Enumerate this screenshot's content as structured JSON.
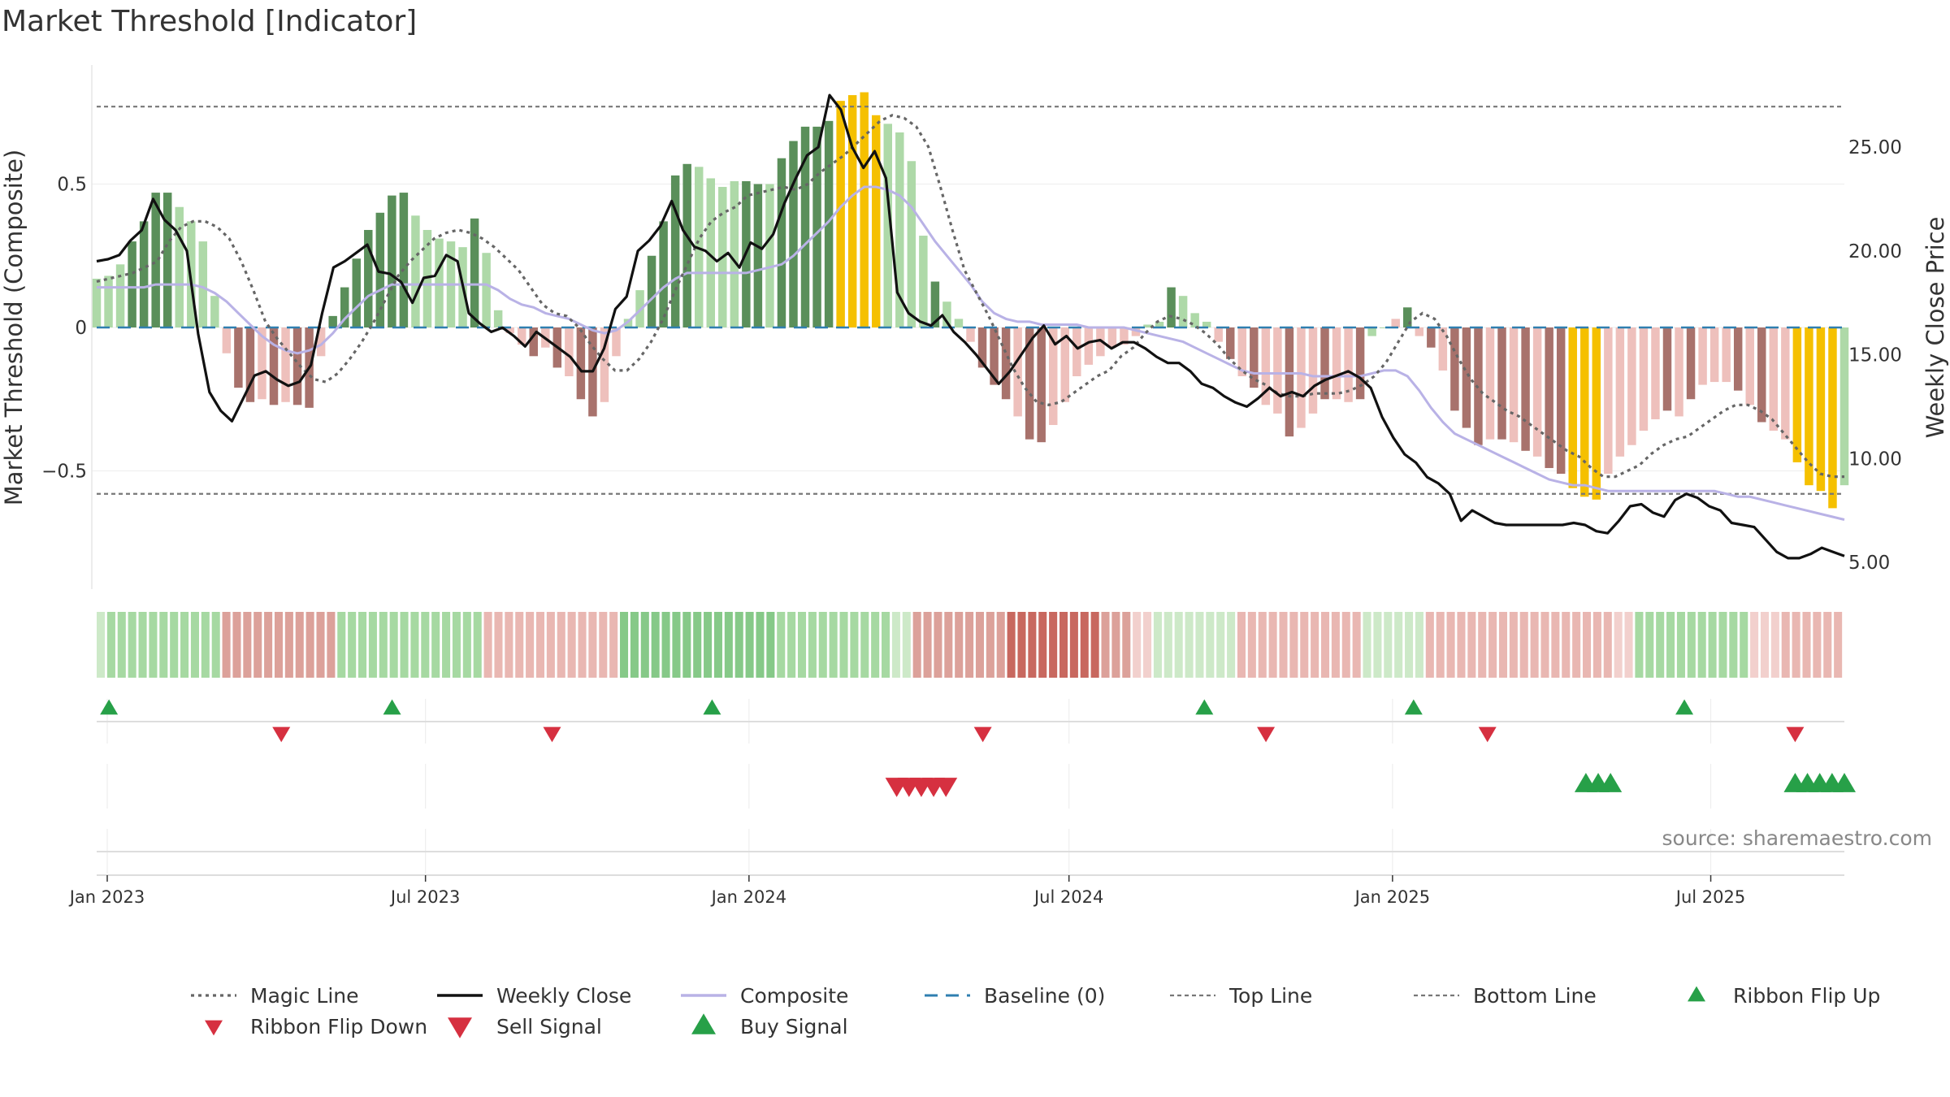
{
  "title": "Market Threshold [Indicator]",
  "source": "source: sharemaestro.com",
  "colors": {
    "bar_dark_green": "#5a8f5a",
    "bar_light_green": "#aed9a8",
    "bar_dark_red": "#a8726c",
    "bar_light_red": "#eec0bc",
    "bar_gold": "#f5c000",
    "magic": "#666666",
    "close": "#111111",
    "composite": "#b9b2e6",
    "baseline": "#2f7fb0",
    "threshold": "#777777",
    "signal_up": "#27a048",
    "signal_down": "#d63040"
  },
  "chart_data": {
    "type": "bar+line",
    "title": "Market Threshold [Indicator]",
    "left_axis": {
      "label": "Market Threshold (Composite)",
      "ticks": [
        "0.5",
        "0",
        "−0.5"
      ],
      "tick_values": [
        0.5,
        0,
        -0.5
      ],
      "range": [
        -0.9,
        0.92
      ]
    },
    "right_axis": {
      "label": "Weekly Close Price",
      "ticks": [
        "25.00",
        "20.00",
        "15.00",
        "10.00",
        "5.00"
      ],
      "tick_values": [
        25,
        20,
        15,
        10,
        5
      ],
      "range": [
        4,
        29.5
      ]
    },
    "x_axis": {
      "type": "date",
      "start": "2022-12-26",
      "end": "2025-09-15",
      "ticks": [
        {
          "label": "Jan 2023",
          "date": "2023-01-01"
        },
        {
          "label": "Jul 2023",
          "date": "2023-07-01"
        },
        {
          "label": "Jan 2024",
          "date": "2024-01-01"
        },
        {
          "label": "Jul 2024",
          "date": "2024-07-01"
        },
        {
          "label": "Jan 2025",
          "date": "2025-01-01"
        },
        {
          "label": "Jul 2025",
          "date": "2025-07-01"
        }
      ]
    },
    "top_line": 0.77,
    "bottom_line": -0.58,
    "baseline": 0,
    "composite_bars": [
      0.17,
      0.18,
      0.22,
      0.3,
      0.37,
      0.47,
      0.47,
      0.42,
      0.37,
      0.3,
      0.11,
      -0.09,
      -0.21,
      -0.26,
      -0.25,
      -0.27,
      -0.26,
      -0.27,
      -0.28,
      -0.1,
      0.04,
      0.14,
      0.24,
      0.34,
      0.4,
      0.46,
      0.47,
      0.39,
      0.34,
      0.31,
      0.3,
      0.28,
      0.38,
      0.26,
      0.06,
      -0.02,
      -0.06,
      -0.1,
      -0.07,
      -0.14,
      -0.17,
      -0.25,
      -0.31,
      -0.26,
      -0.1,
      0.03,
      0.13,
      0.25,
      0.37,
      0.53,
      0.57,
      0.56,
      0.52,
      0.49,
      0.51,
      0.51,
      0.5,
      0.5,
      0.59,
      0.65,
      0.7,
      0.7,
      0.72,
      0.79,
      0.81,
      0.82,
      0.74,
      0.71,
      0.68,
      0.58,
      0.32,
      0.16,
      0.09,
      0.03,
      -0.05,
      -0.14,
      -0.2,
      -0.25,
      -0.31,
      -0.39,
      -0.4,
      -0.34,
      -0.26,
      -0.17,
      -0.13,
      -0.1,
      -0.07,
      -0.06,
      -0.03,
      0.01,
      0.02,
      0.14,
      0.11,
      0.05,
      0.02,
      -0.05,
      -0.11,
      -0.17,
      -0.21,
      -0.27,
      -0.3,
      -0.38,
      -0.35,
      -0.3,
      -0.25,
      -0.25,
      -0.26,
      -0.25,
      -0.03,
      0.0,
      0.03,
      0.07,
      -0.03,
      -0.07,
      -0.15,
      -0.29,
      -0.35,
      -0.41,
      -0.39,
      -0.39,
      -0.4,
      -0.43,
      -0.45,
      -0.49,
      -0.51,
      -0.56,
      -0.59,
      -0.6,
      -0.51,
      -0.45,
      -0.41,
      -0.36,
      -0.32,
      -0.29,
      -0.31,
      -0.25,
      -0.2,
      -0.19,
      -0.19,
      -0.22,
      -0.27,
      -0.33,
      -0.36,
      -0.39,
      -0.47,
      -0.55,
      -0.57,
      -0.63,
      -0.55
    ],
    "bar_colors": [
      "lg",
      "lg",
      "lg",
      "dg",
      "dg",
      "dg",
      "dg",
      "lg",
      "lg",
      "lg",
      "lg",
      "lr",
      "dr",
      "dr",
      "lr",
      "dr",
      "lr",
      "dr",
      "dr",
      "lr",
      "dg",
      "dg",
      "dg",
      "dg",
      "dg",
      "dg",
      "dg",
      "lg",
      "lg",
      "lg",
      "lg",
      "lg",
      "dg",
      "lg",
      "lg",
      "lr",
      "lr",
      "dr",
      "lr",
      "dr",
      "lr",
      "dr",
      "dr",
      "lr",
      "lr",
      "lg",
      "lg",
      "dg",
      "dg",
      "dg",
      "dg",
      "lg",
      "lg",
      "lg",
      "lg",
      "dg",
      "dg",
      "lg",
      "dg",
      "dg",
      "dg",
      "dg",
      "dg",
      "gold",
      "gold",
      "gold",
      "gold",
      "lg",
      "lg",
      "lg",
      "lg",
      "dg",
      "lg",
      "lg",
      "lr",
      "dr",
      "dr",
      "dr",
      "lr",
      "dr",
      "dr",
      "lr",
      "lr",
      "lr",
      "lr",
      "lr",
      "lr",
      "lr",
      "lr",
      "lg",
      "lg",
      "dg",
      "lg",
      "lg",
      "lg",
      "lr",
      "dr",
      "lr",
      "dr",
      "lr",
      "lr",
      "dr",
      "lr",
      "lr",
      "dr",
      "lr",
      "lr",
      "dr",
      "lg",
      "lg",
      "lr",
      "dg",
      "lr",
      "dr",
      "lr",
      "dr",
      "dr",
      "dr",
      "lr",
      "dr",
      "lr",
      "dr",
      "lr",
      "dr",
      "dr",
      "gold",
      "gold",
      "gold",
      "lr",
      "lr",
      "lr",
      "lr",
      "lr",
      "dr",
      "lr",
      "dr",
      "lr",
      "lr",
      "lr",
      "dr",
      "lr",
      "dr",
      "lr",
      "lr",
      "gold",
      "gold",
      "gold",
      "gold"
    ],
    "series": [
      {
        "name": "Magic Line",
        "axis": "left",
        "style": "dotted",
        "values": [
          0.16,
          0.17,
          0.18,
          0.19,
          0.21,
          0.23,
          0.3,
          0.35,
          0.37,
          0.37,
          0.35,
          0.31,
          0.23,
          0.13,
          0.02,
          -0.04,
          -0.09,
          -0.14,
          -0.18,
          -0.19,
          -0.16,
          -0.11,
          -0.05,
          0.02,
          0.1,
          0.18,
          0.23,
          0.27,
          0.31,
          0.33,
          0.34,
          0.33,
          0.31,
          0.28,
          0.24,
          0.2,
          0.14,
          0.08,
          0.05,
          0.04,
          0.0,
          -0.06,
          -0.11,
          -0.15,
          -0.15,
          -0.11,
          -0.05,
          0.03,
          0.13,
          0.22,
          0.31,
          0.37,
          0.4,
          0.42,
          0.46,
          0.47,
          0.48,
          0.49,
          0.48,
          0.5,
          0.54,
          0.57,
          0.6,
          0.64,
          0.68,
          0.72,
          0.74,
          0.73,
          0.7,
          0.63,
          0.49,
          0.34,
          0.2,
          0.12,
          0.04,
          -0.05,
          -0.14,
          -0.21,
          -0.26,
          -0.27,
          -0.26,
          -0.23,
          -0.2,
          -0.17,
          -0.15,
          -0.1,
          -0.07,
          -0.02,
          0.02,
          0.04,
          0.03,
          0.01,
          -0.02,
          -0.06,
          -0.11,
          -0.15,
          -0.18,
          -0.2,
          -0.23,
          -0.24,
          -0.24,
          -0.23,
          -0.23,
          -0.23,
          -0.22,
          -0.2,
          -0.17,
          -0.12,
          -0.05,
          0.02,
          0.05,
          0.03,
          -0.03,
          -0.11,
          -0.18,
          -0.23,
          -0.26,
          -0.29,
          -0.31,
          -0.34,
          -0.37,
          -0.4,
          -0.43,
          -0.45,
          -0.49,
          -0.52,
          -0.52,
          -0.5,
          -0.48,
          -0.44,
          -0.41,
          -0.39,
          -0.38,
          -0.35,
          -0.32,
          -0.29,
          -0.27,
          -0.27,
          -0.29,
          -0.32,
          -0.37,
          -0.42,
          -0.47,
          -0.51,
          -0.52,
          -0.52
        ]
      },
      {
        "name": "Weekly Close",
        "axis": "right",
        "style": "solid",
        "values": [
          19.5,
          19.6,
          19.8,
          20.5,
          21.0,
          22.5,
          21.5,
          21.0,
          20.0,
          16.0,
          13.2,
          12.3,
          11.8,
          12.9,
          14.0,
          14.2,
          13.8,
          13.5,
          13.7,
          14.5,
          17.0,
          19.2,
          19.5,
          19.9,
          20.3,
          19.0,
          18.9,
          18.5,
          17.5,
          18.7,
          18.8,
          19.8,
          19.5,
          17.0,
          16.5,
          16.1,
          16.3,
          15.9,
          15.4,
          16.1,
          15.7,
          15.3,
          14.9,
          14.2,
          14.2,
          15.3,
          17.2,
          17.8,
          20.0,
          20.5,
          21.2,
          22.4,
          21.0,
          20.2,
          20.0,
          19.5,
          19.9,
          19.2,
          20.4,
          20.1,
          20.8,
          22.3,
          23.5,
          24.6,
          25.0,
          27.5,
          26.8,
          25.0,
          24.0,
          24.8,
          23.5,
          18.0,
          17.0,
          16.6,
          16.4,
          16.9,
          16.1,
          15.6,
          15.0,
          14.3,
          13.6,
          14.2,
          15.0,
          15.8,
          16.4,
          15.5,
          15.9,
          15.3,
          15.6,
          15.7,
          15.3,
          15.6,
          15.6,
          15.3,
          14.9,
          14.6,
          14.6,
          14.2,
          13.6,
          13.4,
          13.0,
          12.7,
          12.5,
          12.9,
          13.4,
          13.0,
          13.2,
          13.0,
          13.5,
          13.8,
          14.0,
          14.2,
          13.9,
          13.4,
          12.0,
          11.0,
          10.2,
          9.8,
          9.1,
          8.8,
          8.3,
          7.0,
          7.5,
          7.2,
          6.9,
          6.8,
          6.8,
          6.8,
          6.8,
          6.8,
          6.8,
          6.9,
          6.8,
          6.5,
          6.4,
          7.0,
          7.7,
          7.8,
          7.4,
          7.2,
          8.0,
          8.3,
          8.1,
          7.7,
          7.5,
          6.9,
          6.8,
          6.7,
          6.1,
          5.5,
          5.2,
          5.2,
          5.4,
          5.7,
          5.5,
          5.3
        ]
      },
      {
        "name": "Composite",
        "axis": "left",
        "style": "solid",
        "values": [
          0.14,
          0.14,
          0.14,
          0.14,
          0.14,
          0.15,
          0.15,
          0.15,
          0.15,
          0.14,
          0.12,
          0.09,
          0.05,
          0.01,
          -0.03,
          -0.06,
          -0.08,
          -0.09,
          -0.08,
          -0.06,
          -0.02,
          0.03,
          0.07,
          0.11,
          0.13,
          0.15,
          0.15,
          0.15,
          0.15,
          0.15,
          0.15,
          0.15,
          0.15,
          0.15,
          0.13,
          0.1,
          0.08,
          0.07,
          0.05,
          0.04,
          0.03,
          0.01,
          -0.01,
          -0.02,
          -0.01,
          0.02,
          0.06,
          0.1,
          0.14,
          0.17,
          0.19,
          0.19,
          0.19,
          0.19,
          0.19,
          0.19,
          0.2,
          0.21,
          0.22,
          0.25,
          0.29,
          0.33,
          0.37,
          0.42,
          0.46,
          0.49,
          0.49,
          0.48,
          0.46,
          0.42,
          0.36,
          0.3,
          0.25,
          0.2,
          0.15,
          0.09,
          0.05,
          0.03,
          0.02,
          0.02,
          0.01,
          0.01,
          0.01,
          0.01,
          0.0,
          0.0,
          0.0,
          0.0,
          -0.01,
          -0.02,
          -0.03,
          -0.04,
          -0.05,
          -0.07,
          -0.09,
          -0.11,
          -0.13,
          -0.15,
          -0.16,
          -0.16,
          -0.16,
          -0.16,
          -0.16,
          -0.17,
          -0.17,
          -0.17,
          -0.17,
          -0.17,
          -0.16,
          -0.15,
          -0.15,
          -0.17,
          -0.22,
          -0.28,
          -0.33,
          -0.37,
          -0.39,
          -0.41,
          -0.43,
          -0.45,
          -0.47,
          -0.49,
          -0.51,
          -0.53,
          -0.54,
          -0.55,
          -0.55,
          -0.56,
          -0.57,
          -0.57,
          -0.57,
          -0.57,
          -0.57,
          -0.57,
          -0.57,
          -0.57,
          -0.57,
          -0.57,
          -0.58,
          -0.59,
          -0.59,
          -0.6,
          -0.61,
          -0.62,
          -0.63,
          -0.64,
          -0.65,
          -0.66,
          -0.67
        ]
      },
      {
        "name": "Baseline (0)",
        "axis": "left",
        "style": "dashed",
        "values": [
          0
        ]
      },
      {
        "name": "Top Line",
        "axis": "left",
        "style": "dotted",
        "values": [
          0.77
        ]
      },
      {
        "name": "Bottom Line",
        "axis": "left",
        "style": "dotted",
        "values": [
          -0.58
        ]
      }
    ],
    "ribbon": [
      "vlg",
      "lg",
      "lg",
      "lg",
      "lg",
      "lg",
      "lg",
      "lg",
      "lg",
      "lg",
      "lg",
      "lg",
      "mr",
      "mr",
      "mr",
      "mr",
      "mr",
      "mr",
      "mr",
      "mr",
      "mr",
      "mr",
      "mr",
      "lg",
      "lg",
      "lg",
      "lg",
      "lg",
      "lg",
      "lg",
      "lg",
      "lg",
      "lg",
      "lg",
      "lg",
      "lg",
      "lg",
      "lr",
      "lr",
      "lr",
      "lr",
      "lr",
      "lr",
      "lr",
      "lr",
      "lr",
      "lr",
      "lr",
      "lr",
      "lr",
      "mg",
      "mg",
      "mg",
      "mg",
      "mg",
      "mg",
      "mg",
      "mg",
      "mg",
      "mg",
      "mg",
      "mg",
      "mg",
      "mg",
      "mg",
      "lg",
      "lg",
      "lg",
      "lg",
      "lg",
      "lg",
      "lg",
      "lg",
      "lg",
      "lg",
      "lg",
      "vlg",
      "vlg",
      "mr",
      "mr",
      "mr",
      "mr",
      "mr",
      "mr",
      "mr",
      "mr",
      "mr",
      "dr",
      "dr",
      "dr",
      "dr",
      "dr",
      "dr",
      "dr",
      "dr",
      "dr",
      "mr",
      "mr",
      "mr",
      "vlr",
      "vlr",
      "vlg",
      "vlg",
      "vlg",
      "vlg",
      "vlg",
      "vlg",
      "vlg",
      "vlg",
      "lr",
      "lr",
      "lr",
      "lr",
      "lr",
      "lr",
      "lr",
      "lr",
      "lr",
      "lr",
      "lr",
      "lr",
      "vlg",
      "vlg",
      "vlg",
      "vlg",
      "vlg",
      "vlg",
      "lr",
      "lr",
      "lr",
      "lr",
      "lr",
      "lr",
      "lr",
      "lr",
      "lr",
      "lr",
      "lr",
      "lr",
      "lr",
      "lr",
      "lr",
      "lr",
      "lr",
      "lr",
      "vlr",
      "vlr",
      "lg",
      "lg",
      "lg",
      "lg",
      "lg",
      "lg",
      "lg",
      "lg",
      "lg",
      "lg",
      "lg",
      "vlr",
      "vlr",
      "vlr",
      "lr",
      "lr",
      "lr",
      "lr",
      "lr",
      "lr"
    ],
    "ribbon_flip_up_dates": [
      "2023-01-02",
      "2023-06-12",
      "2023-12-11",
      "2024-09-16",
      "2025-01-13",
      "2025-06-16"
    ],
    "ribbon_flip_down_dates": [
      "2023-04-10",
      "2023-09-11",
      "2024-05-13",
      "2024-10-21",
      "2025-02-24",
      "2025-08-18"
    ],
    "sell_signal_dates": [
      "2024-03-25",
      "2024-04-01",
      "2024-04-08",
      "2024-04-15",
      "2024-04-22"
    ],
    "buy_signal_dates": [
      "2025-04-21",
      "2025-04-28",
      "2025-05-05",
      "2025-08-18",
      "2025-08-25",
      "2025-09-01",
      "2025-09-08",
      "2025-09-15"
    ]
  },
  "legend": [
    {
      "label": "Magic Line",
      "kind": "dotted",
      "color": "#666666"
    },
    {
      "label": "Weekly Close",
      "kind": "solid",
      "color": "#111111"
    },
    {
      "label": "Composite",
      "kind": "solid",
      "color": "#b9b2e6"
    },
    {
      "label": "Baseline (0)",
      "kind": "dashed",
      "color": "#2f7fb0"
    },
    {
      "label": "Top Line",
      "kind": "dotted-light",
      "color": "#777777"
    },
    {
      "label": "Bottom Line",
      "kind": "dotted-light",
      "color": "#777777"
    },
    {
      "label": "Ribbon Flip Up",
      "kind": "tri-up",
      "color": "#27a048"
    },
    {
      "label": "Ribbon Flip Down",
      "kind": "tri-down-small",
      "color": "#d63040"
    },
    {
      "label": "Sell Signal",
      "kind": "tri-down",
      "color": "#d63040"
    },
    {
      "label": "Buy Signal",
      "kind": "tri-up-big",
      "color": "#27a048"
    }
  ]
}
